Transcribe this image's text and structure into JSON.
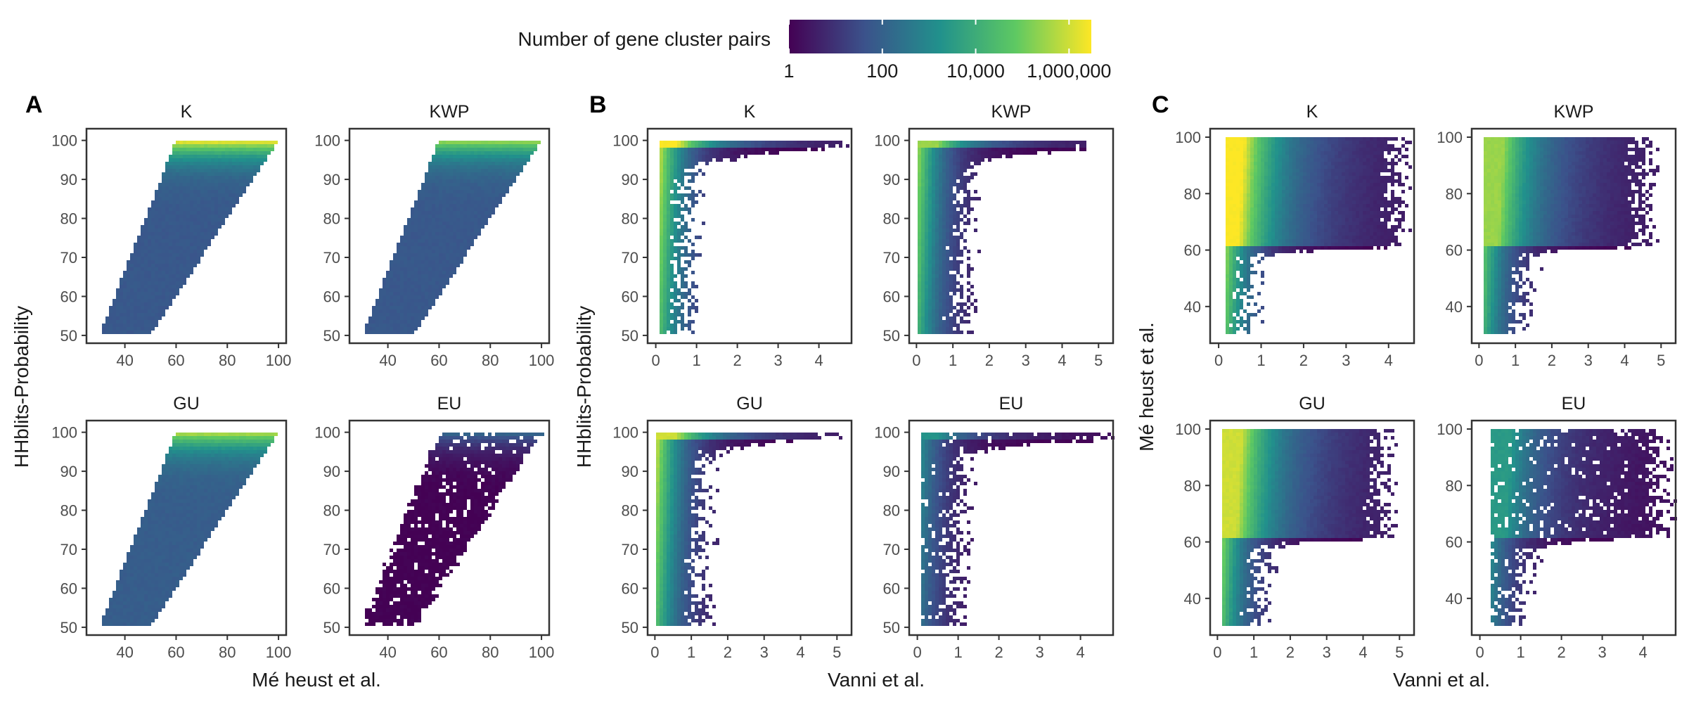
{
  "legend": {
    "title": "Number of gene cluster pairs",
    "ticks": [
      {
        "label": "1",
        "value": 1
      },
      {
        "label": "100",
        "value": 100
      },
      {
        "label": "10,000",
        "value": 10000
      },
      {
        "label": "1,000,000",
        "value": 1000000
      }
    ],
    "scale": "log10",
    "range": [
      1,
      3000000
    ],
    "palette": [
      "#440154",
      "#3b528b",
      "#21918c",
      "#5ec962",
      "#fde725"
    ]
  },
  "groups": [
    {
      "tag": "A",
      "xlabel": "Mé heust et al.",
      "ylabel": "HHblits-Probability"
    },
    {
      "tag": "B",
      "xlabel": "Vanni et al.",
      "ylabel": "HHblits-Probability"
    },
    {
      "tag": "C",
      "xlabel": "Vanni et al.",
      "ylabel": "Mé heust et al."
    }
  ],
  "chart_data": [
    {
      "type": "heatmap",
      "group": "A",
      "facet": "K",
      "shape": "band",
      "xlim": [
        25,
        103
      ],
      "ylim": [
        48,
        103
      ],
      "x_ticks": [
        40,
        60,
        80,
        100
      ],
      "y_ticks": [
        50,
        60,
        70,
        80,
        90,
        100
      ],
      "x_tick_labels": [
        "40",
        "60",
        "80",
        "100"
      ],
      "y_tick_labels": [
        "50",
        "60",
        "70",
        "80",
        "90",
        "100"
      ],
      "region": {
        "y_range": [
          50,
          100
        ],
        "left_x_at_ymin": 30,
        "left_x_at_ymax": 60,
        "right_x_at_ymin": 50,
        "right_x_at_ymax": 100
      },
      "count_range": [
        60,
        5000000
      ]
    },
    {
      "type": "heatmap",
      "group": "A",
      "facet": "KWP",
      "shape": "band",
      "xlim": [
        25,
        103
      ],
      "ylim": [
        48,
        103
      ],
      "x_ticks": [
        40,
        60,
        80,
        100
      ],
      "y_ticks": [
        50,
        60,
        70,
        80,
        90,
        100
      ],
      "x_tick_labels": [
        "40",
        "60",
        "80",
        "100"
      ],
      "y_tick_labels": [
        "50",
        "60",
        "70",
        "80",
        "90",
        "100"
      ],
      "region": {
        "y_range": [
          50,
          100
        ],
        "left_x_at_ymin": 30,
        "left_x_at_ymax": 60,
        "right_x_at_ymin": 50,
        "right_x_at_ymax": 100
      },
      "count_range": [
        60,
        500000
      ]
    },
    {
      "type": "heatmap",
      "group": "A",
      "facet": "GU",
      "shape": "band",
      "xlim": [
        25,
        103
      ],
      "ylim": [
        48,
        103
      ],
      "x_ticks": [
        40,
        60,
        80,
        100
      ],
      "y_ticks": [
        50,
        60,
        70,
        80,
        90,
        100
      ],
      "x_tick_labels": [
        "40",
        "60",
        "80",
        "100"
      ],
      "y_tick_labels": [
        "50",
        "60",
        "70",
        "80",
        "90",
        "100"
      ],
      "region": {
        "y_range": [
          50,
          100
        ],
        "left_x_at_ymin": 30,
        "left_x_at_ymax": 60,
        "right_x_at_ymin": 50,
        "right_x_at_ymax": 100
      },
      "count_range": [
        80,
        1000000
      ]
    },
    {
      "type": "heatmap",
      "group": "A",
      "facet": "EU",
      "shape": "band",
      "xlim": [
        25,
        103
      ],
      "ylim": [
        48,
        103
      ],
      "x_ticks": [
        40,
        60,
        80,
        100
      ],
      "y_ticks": [
        50,
        60,
        70,
        80,
        90,
        100
      ],
      "x_tick_labels": [
        "40",
        "60",
        "80",
        "100"
      ],
      "y_tick_labels": [
        "50",
        "60",
        "70",
        "80",
        "90",
        "100"
      ],
      "region": {
        "y_range": [
          50,
          100
        ],
        "left_x_at_ymin": 30,
        "left_x_at_ymax": 60,
        "right_x_at_ymin": 50,
        "right_x_at_ymax": 100
      },
      "count_range": [
        1,
        200
      ]
    },
    {
      "type": "heatmap",
      "group": "B",
      "facet": "K",
      "shape": "l",
      "xlim": [
        -0.2,
        4.8
      ],
      "ylim": [
        48,
        103
      ],
      "x_ticks": [
        0,
        1,
        2,
        3,
        4
      ],
      "y_ticks": [
        50,
        60,
        70,
        80,
        90,
        100
      ],
      "x_tick_labels": [
        "0",
        "1",
        "2",
        "3",
        "4"
      ],
      "y_tick_labels": [
        "50",
        "60",
        "70",
        "80",
        "90",
        "100"
      ],
      "region": {
        "x_min": 0.05,
        "y_min": 50,
        "y_max": 100,
        "foot_x": 0.65,
        "knee_x": 1.0,
        "knee_y": 93,
        "top_y": 98,
        "tail_x": 4.5
      },
      "count_range": [
        1,
        3000000
      ]
    },
    {
      "type": "heatmap",
      "group": "B",
      "facet": "KWP",
      "shape": "l",
      "xlim": [
        -0.2,
        5.4
      ],
      "ylim": [
        48,
        103
      ],
      "x_ticks": [
        0,
        1,
        2,
        3,
        4,
        5
      ],
      "y_ticks": [
        50,
        60,
        70,
        80,
        90,
        100
      ],
      "x_tick_labels": [
        "0",
        "1",
        "2",
        "3",
        "4",
        "5"
      ],
      "y_tick_labels": [
        "50",
        "60",
        "70",
        "80",
        "90",
        "100"
      ],
      "region": {
        "x_min": 0.05,
        "y_min": 50,
        "y_max": 100,
        "foot_x": 1.2,
        "knee_x": 1.6,
        "knee_y": 93,
        "top_y": 98,
        "tail_x": 4.6
      },
      "count_range": [
        1,
        300000
      ]
    },
    {
      "type": "heatmap",
      "group": "B",
      "facet": "GU",
      "shape": "l",
      "xlim": [
        -0.2,
        5.4
      ],
      "ylim": [
        48,
        103
      ],
      "x_ticks": [
        0,
        1,
        2,
        3,
        4,
        5
      ],
      "y_ticks": [
        50,
        60,
        70,
        80,
        90,
        100
      ],
      "x_tick_labels": [
        "0",
        "1",
        "2",
        "3",
        "4",
        "5"
      ],
      "y_tick_labels": [
        "50",
        "60",
        "70",
        "80",
        "90",
        "100"
      ],
      "region": {
        "x_min": 0.05,
        "y_min": 50,
        "y_max": 100,
        "foot_x": 1.2,
        "knee_x": 1.5,
        "knee_y": 94,
        "top_y": 98.5,
        "tail_x": 4.8
      },
      "count_range": [
        1,
        1000000
      ]
    },
    {
      "type": "heatmap",
      "group": "B",
      "facet": "EU",
      "shape": "l",
      "xlim": [
        -0.2,
        4.8
      ],
      "ylim": [
        48,
        103
      ],
      "x_ticks": [
        0,
        1,
        2,
        3,
        4
      ],
      "y_ticks": [
        50,
        60,
        70,
        80,
        90,
        100
      ],
      "x_tick_labels": [
        "0",
        "1",
        "2",
        "3",
        "4"
      ],
      "y_tick_labels": [
        "50",
        "60",
        "70",
        "80",
        "90",
        "100"
      ],
      "region": {
        "x_min": 0.05,
        "y_min": 50,
        "y_max": 100,
        "foot_x": 0.85,
        "knee_x": 1.3,
        "knee_y": 94,
        "top_y": 98,
        "tail_x": 4.6
      },
      "count_range": [
        1,
        2000
      ]
    },
    {
      "type": "heatmap",
      "group": "C",
      "facet": "K",
      "shape": "l",
      "xlim": [
        -0.2,
        4.6
      ],
      "ylim": [
        27,
        103
      ],
      "x_ticks": [
        0,
        1,
        2,
        3,
        4
      ],
      "y_ticks": [
        40,
        60,
        80,
        100
      ],
      "x_tick_labels": [
        "0",
        "1",
        "2",
        "3",
        "4"
      ],
      "y_tick_labels": [
        "40",
        "60",
        "80",
        "100"
      ],
      "region": {
        "x_min": 0.15,
        "y_min": 30,
        "y_max": 100,
        "foot_x": 0.6,
        "knee_x": 1.0,
        "knee_y": 58,
        "top_y": 61,
        "tail_x": 4.2
      },
      "count_range": [
        1,
        3000000
      ]
    },
    {
      "type": "heatmap",
      "group": "C",
      "facet": "KWP",
      "shape": "l",
      "xlim": [
        -0.2,
        5.4
      ],
      "ylim": [
        27,
        103
      ],
      "x_ticks": [
        0,
        1,
        2,
        3,
        4,
        5
      ],
      "y_ticks": [
        40,
        60,
        80,
        100
      ],
      "x_tick_labels": [
        "0",
        "1",
        "2",
        "3",
        "4",
        "5"
      ],
      "y_tick_labels": [
        "40",
        "60",
        "80",
        "100"
      ],
      "region": {
        "x_min": 0.15,
        "y_min": 30,
        "y_max": 100,
        "foot_x": 1.1,
        "knee_x": 1.5,
        "knee_y": 58,
        "top_y": 61,
        "tail_x": 4.5
      },
      "count_range": [
        1,
        300000
      ]
    },
    {
      "type": "heatmap",
      "group": "C",
      "facet": "GU",
      "shape": "l",
      "xlim": [
        -0.2,
        5.4
      ],
      "ylim": [
        27,
        103
      ],
      "x_ticks": [
        0,
        1,
        2,
        3,
        4,
        5
      ],
      "y_ticks": [
        40,
        60,
        80,
        100
      ],
      "x_tick_labels": [
        "0",
        "1",
        "2",
        "3",
        "4",
        "5"
      ],
      "y_tick_labels": [
        "40",
        "60",
        "80",
        "100"
      ],
      "region": {
        "x_min": 0.15,
        "y_min": 30,
        "y_max": 100,
        "foot_x": 1.1,
        "knee_x": 1.5,
        "knee_y": 58,
        "top_y": 61,
        "tail_x": 4.5
      },
      "count_range": [
        1,
        1000000
      ]
    },
    {
      "type": "heatmap",
      "group": "C",
      "facet": "EU",
      "shape": "l",
      "xlim": [
        -0.2,
        4.8
      ],
      "ylim": [
        27,
        103
      ],
      "x_ticks": [
        0,
        1,
        2,
        3,
        4
      ],
      "y_ticks": [
        40,
        60,
        80,
        100
      ],
      "x_tick_labels": [
        "0",
        "1",
        "2",
        "3",
        "4"
      ],
      "y_tick_labels": [
        "40",
        "60",
        "80",
        "100"
      ],
      "region": {
        "x_min": 0.3,
        "y_min": 30,
        "y_max": 100,
        "foot_x": 0.9,
        "knee_x": 1.3,
        "knee_y": 57,
        "top_y": 62,
        "tail_x": 4.4
      },
      "count_range": [
        1,
        3000
      ]
    }
  ]
}
